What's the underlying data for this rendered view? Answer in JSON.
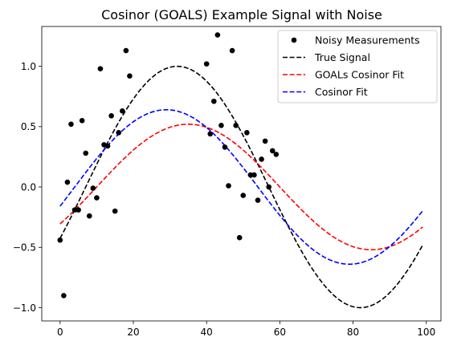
{
  "chart_data": {
    "type": "scatter",
    "title": "Cosinor (GOALS) Example Signal with Noise",
    "xlabel": "",
    "ylabel": "",
    "xlim": [
      -5,
      104
    ],
    "ylim": [
      -1.11,
      1.33
    ],
    "xticks": [
      0,
      20,
      40,
      60,
      80,
      100
    ],
    "yticks": [
      -1.0,
      -0.5,
      0.0,
      0.5,
      1.0
    ],
    "xtick_labels": [
      "0",
      "20",
      "40",
      "60",
      "80",
      "100"
    ],
    "ytick_labels": [
      "−1.0",
      "−0.5",
      "0.0",
      "0.5",
      "1.0"
    ],
    "grid": false,
    "legend_position": "top-right",
    "series": [
      {
        "name": "Noisy Measurements",
        "kind": "scatter",
        "color": "#000000",
        "x": [
          0,
          1,
          2,
          3,
          4,
          5,
          6,
          7,
          8,
          9,
          10,
          11,
          12,
          13,
          14,
          15,
          16,
          17,
          18,
          19,
          40,
          41,
          42,
          43,
          44,
          45,
          46,
          47,
          48,
          49,
          50,
          51,
          52,
          53,
          54,
          55,
          56,
          57,
          58,
          59
        ],
        "y": [
          -0.44,
          -0.9,
          0.04,
          0.52,
          -0.19,
          -0.19,
          0.55,
          0.28,
          -0.24,
          -0.01,
          -0.09,
          0.98,
          0.35,
          0.34,
          0.59,
          -0.2,
          0.45,
          0.63,
          1.13,
          0.92,
          1.02,
          0.44,
          0.71,
          1.26,
          0.51,
          0.33,
          0.01,
          1.13,
          0.51,
          -0.42,
          -0.07,
          0.45,
          0.1,
          0.1,
          -0.11,
          0.23,
          0.38,
          -0.0,
          0.3,
          0.27
        ]
      },
      {
        "name": "True Signal",
        "kind": "line",
        "style": "dashed",
        "color": "#000000",
        "amplitude": 1.0,
        "acrophase": 32,
        "period": 100,
        "mesor": 0.0
      },
      {
        "name": "GOALs Cosinor Fit",
        "kind": "line",
        "style": "dashed",
        "color": "#ff0000",
        "amplitude": 0.52,
        "acrophase": 35,
        "period": 100,
        "mesor": 0.0
      },
      {
        "name": "Cosinor Fit",
        "kind": "line",
        "style": "dashed",
        "color": "#0000ff",
        "amplitude": 0.64,
        "acrophase": 29,
        "period": 100,
        "mesor": 0.0
      }
    ],
    "line_x_range": [
      0,
      99
    ]
  }
}
